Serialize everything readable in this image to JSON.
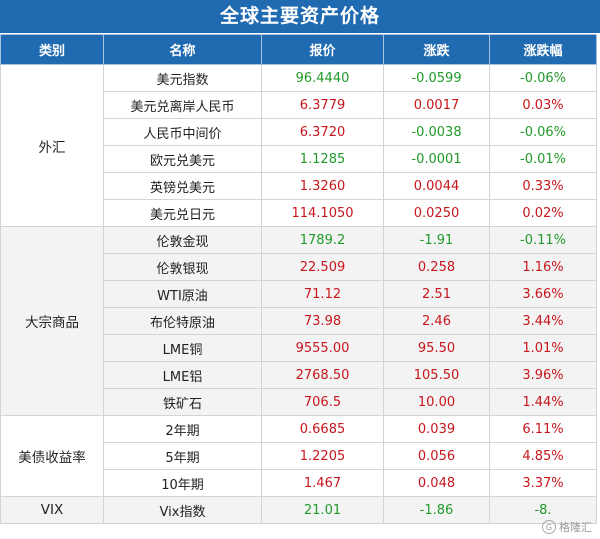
{
  "title": "全球主要资产价格",
  "headers": [
    "类别",
    "名称",
    "报价",
    "涨跌",
    "涨跌幅"
  ],
  "colors": {
    "header_bg": "#1f6ab0",
    "up": "#c8161d",
    "down": "#229a2b"
  },
  "groups": [
    {
      "category": "外汇",
      "rows": [
        {
          "name": "美元指数",
          "price": "96.4440",
          "change": "-0.0599",
          "pct": "-0.06%",
          "dir": "down"
        },
        {
          "name": "美元兑离岸人民币",
          "price": "6.3779",
          "change": "0.0017",
          "pct": "0.03%",
          "dir": "up"
        },
        {
          "name": "人民币中间价",
          "price": "6.3720",
          "change": "-0.0038",
          "pct": "-0.06%",
          "dir": "down"
        },
        {
          "name": "欧元兑美元",
          "price": "1.1285",
          "change": "-0.0001",
          "pct": "-0.01%",
          "dir": "down"
        },
        {
          "name": "英镑兑美元",
          "price": "1.3260",
          "change": "0.0044",
          "pct": "0.33%",
          "dir": "up"
        },
        {
          "name": "美元兑日元",
          "price": "114.1050",
          "change": "0.0250",
          "pct": "0.02%",
          "dir": "up"
        }
      ]
    },
    {
      "category": "大宗商品",
      "rows": [
        {
          "name": "伦敦金现",
          "price": "1789.2",
          "change": "-1.91",
          "pct": "-0.11%",
          "dir": "down"
        },
        {
          "name": "伦敦银现",
          "price": "22.509",
          "change": "0.258",
          "pct": "1.16%",
          "dir": "up"
        },
        {
          "name": "WTI原油",
          "price": "71.12",
          "change": "2.51",
          "pct": "3.66%",
          "dir": "up"
        },
        {
          "name": "布伦特原油",
          "price": "73.98",
          "change": "2.46",
          "pct": "3.44%",
          "dir": "up"
        },
        {
          "name": "LME铜",
          "price": "9555.00",
          "change": "95.50",
          "pct": "1.01%",
          "dir": "up"
        },
        {
          "name": "LME铝",
          "price": "2768.50",
          "change": "105.50",
          "pct": "3.96%",
          "dir": "up"
        },
        {
          "name": "铁矿石",
          "price": "706.5",
          "change": "10.00",
          "pct": "1.44%",
          "dir": "up"
        }
      ]
    },
    {
      "category": "美债收益率",
      "rows": [
        {
          "name": "2年期",
          "price": "0.6685",
          "change": "0.039",
          "pct": "6.11%",
          "dir": "up"
        },
        {
          "name": "5年期",
          "price": "1.2205",
          "change": "0.056",
          "pct": "4.85%",
          "dir": "up"
        },
        {
          "name": "10年期",
          "price": "1.467",
          "change": "0.048",
          "pct": "3.37%",
          "dir": "up"
        }
      ]
    },
    {
      "category": "VIX",
      "rows": [
        {
          "name": "Vix指数",
          "price": "21.01",
          "change": "-1.86",
          "pct": "-8.",
          "dir": "down"
        }
      ]
    }
  ],
  "watermark": "格隆汇"
}
